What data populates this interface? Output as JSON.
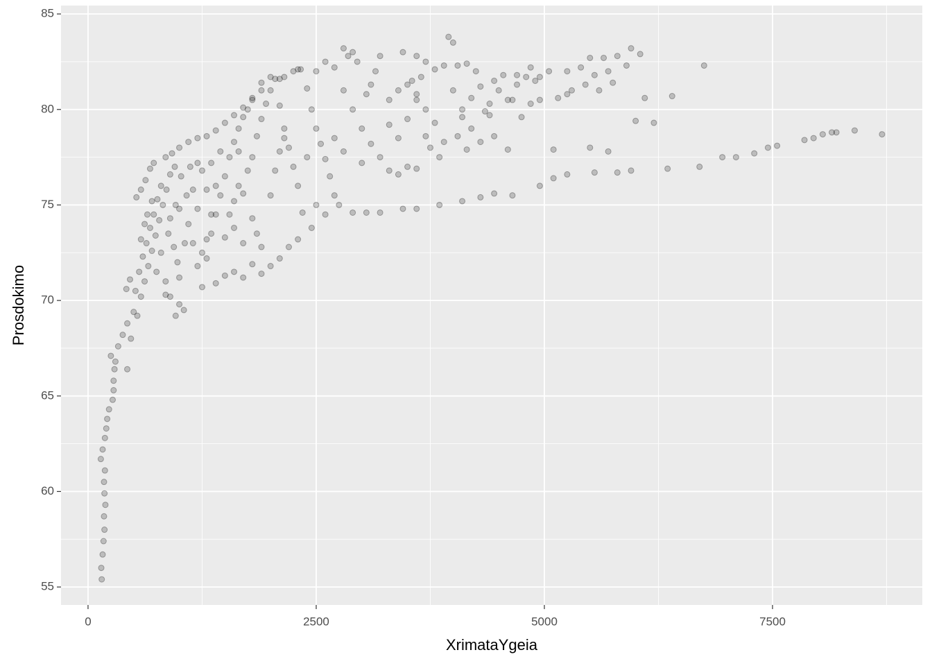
{
  "chart_data": {
    "type": "scatter",
    "x_label": "XrimataYgeia",
    "y_label": "Prosdokimo",
    "xlim": [
      -296,
      9141
    ],
    "ylim": [
      54.06,
      85.44
    ],
    "xticks": [
      0,
      2500,
      5000,
      7500
    ],
    "yticks": [
      55,
      60,
      65,
      70,
      75,
      80,
      85
    ],
    "x_minor_grid": [
      1250,
      3750,
      6250,
      8750
    ],
    "y_minor_grid": [
      57.5,
      62.5,
      67.5,
      72.5,
      77.5,
      82.5
    ],
    "grid": true,
    "color": "#000000",
    "opacity": 0.2,
    "x": [
      150,
      145,
      160,
      170,
      180,
      175,
      190,
      180,
      175,
      185,
      140,
      160,
      185,
      200,
      210,
      230,
      270,
      280,
      280,
      290,
      250,
      300,
      330,
      380,
      430,
      430,
      470,
      500,
      420,
      460,
      520,
      560,
      600,
      640,
      680,
      720,
      760,
      800,
      540,
      580,
      620,
      660,
      700,
      740,
      780,
      820,
      860,
      900,
      950,
      980,
      1000,
      960,
      1050,
      900,
      850,
      940,
      880,
      1000,
      1020,
      1080,
      1100,
      1150,
      1200,
      1250,
      1060,
      1120,
      650,
      700,
      580,
      620,
      750,
      800,
      850,
      900,
      960,
      1000,
      1300,
      1350,
      1400,
      1450,
      1500,
      1550,
      1600,
      1650,
      1700,
      1400,
      1500,
      1600,
      1700,
      1800,
      1900,
      2000,
      2100,
      2200,
      2300,
      1250,
      1300,
      1350,
      1450,
      1500,
      1550,
      1600,
      1650,
      1700,
      1750,
      1800,
      1850,
      1900,
      1950,
      2000,
      2050,
      2100,
      2150,
      2200,
      2250,
      2300,
      2350,
      1800,
      1850,
      1900,
      2000,
      2050,
      2100,
      2150,
      1700,
      1400,
      1350,
      1300,
      1250,
      1200,
      1150,
      1200,
      1800,
      1900,
      2000,
      2150,
      2250,
      2330,
      1750,
      1650,
      1600,
      530,
      580,
      630,
      680,
      720,
      850,
      920,
      1000,
      1100,
      1200,
      1300,
      1400,
      1500,
      1600,
      1700,
      1800,
      1900,
      2100,
      2300,
      2400,
      2450,
      2500,
      2550,
      2600,
      2650,
      2700,
      2750,
      2500,
      2600,
      2450,
      2400,
      2500,
      2600,
      2700,
      2800,
      2850,
      2900,
      2950,
      2800,
      2900,
      3000,
      3100,
      3200,
      3300,
      3400,
      3500,
      3600,
      2900,
      3050,
      3200,
      3450,
      2700,
      2800,
      3000,
      3050,
      3100,
      3150,
      3200,
      3450,
      3600,
      3700,
      3800,
      3900,
      3950,
      4000,
      4050,
      3300,
      3400,
      3500,
      3550,
      3600,
      3650,
      3700,
      3800,
      3750,
      3850,
      3500,
      3400,
      3300,
      3700,
      3900,
      3600,
      4100,
      4200,
      4300,
      4400,
      4500,
      4600,
      4700,
      4800,
      4900,
      4950,
      4150,
      4250,
      4450,
      4550,
      4700,
      4850,
      4000,
      4100,
      4200,
      4300,
      4400,
      4450,
      4600,
      4750,
      4850,
      4950,
      4050,
      4150,
      4350,
      4650,
      5050,
      5250,
      5400,
      5500,
      5650,
      5800,
      5900,
      5700,
      5550,
      5300,
      5450,
      5600,
      5750,
      5250,
      5150,
      3600,
      3850,
      4100,
      4300,
      4450,
      4650,
      4950,
      5100,
      5250,
      5550,
      5800,
      5950,
      6350,
      6700,
      6950,
      7100,
      7300,
      7450,
      7550,
      7850,
      7950,
      8050,
      8150,
      8200,
      8400,
      8700,
      5100,
      5500,
      5700,
      6000,
      6200,
      6400,
      6100,
      6750,
      5950,
      6050
    ],
    "y": [
      55.4,
      56,
      56.7,
      57.4,
      58,
      58.7,
      59.3,
      59.9,
      60.5,
      61.1,
      61.7,
      62.2,
      62.8,
      63.3,
      63.8,
      64.3,
      64.8,
      65.3,
      65.8,
      66.4,
      67.1,
      66.8,
      67.6,
      68.2,
      68.8,
      66.4,
      68,
      69.4,
      70.6,
      71.1,
      70.5,
      71.5,
      72.3,
      73,
      73.8,
      74.5,
      75.3,
      76,
      69.2,
      70.2,
      71,
      71.8,
      72.6,
      73.4,
      74.2,
      75,
      75.8,
      76.6,
      77,
      72,
      69.8,
      69.2,
      69.5,
      70.2,
      71,
      72.8,
      73.5,
      74.8,
      76.5,
      75.5,
      74,
      73,
      71.8,
      70.7,
      73,
      77,
      74.5,
      75.2,
      73.2,
      74,
      71.5,
      72.5,
      70.3,
      74.3,
      75,
      71.2,
      72.2,
      73.5,
      74.5,
      75.5,
      76.5,
      77.5,
      78.3,
      79,
      79.6,
      70.9,
      71.3,
      71.5,
      71.2,
      71.9,
      71.4,
      71.8,
      72.2,
      72.8,
      73.2,
      76.8,
      75.8,
      77.2,
      77.8,
      73.3,
      74.5,
      75.2,
      76,
      75.6,
      76.8,
      77.5,
      78.6,
      79.5,
      80.3,
      81,
      81.6,
      80.2,
      79,
      78,
      77,
      76,
      74.6,
      74.3,
      73.5,
      72.8,
      75.5,
      76.8,
      77.8,
      78.5,
      73,
      76,
      74.5,
      73.2,
      72.5,
      74.8,
      75.8,
      77.2,
      80.5,
      81.4,
      81.7,
      81.7,
      82,
      82.1,
      80,
      77.8,
      73.8,
      75.4,
      75.8,
      76.3,
      76.9,
      77.2,
      77.5,
      77.7,
      78,
      78.3,
      78.5,
      78.6,
      78.9,
      79.3,
      79.7,
      80.1,
      80.6,
      81,
      81.6,
      82.1,
      81.1,
      80,
      79,
      78.2,
      77.4,
      76.5,
      75.5,
      75,
      75,
      74.5,
      73.8,
      77.5,
      82,
      82.5,
      82.2,
      83.2,
      82.8,
      83,
      82.5,
      81,
      80,
      79,
      78.2,
      77.5,
      76.8,
      76.6,
      77,
      76.9,
      74.6,
      74.6,
      74.6,
      74.8,
      78.5,
      77.8,
      77.2,
      80.8,
      81.3,
      82,
      82.8,
      83,
      82.8,
      82.5,
      82.1,
      82.3,
      83.8,
      83.5,
      82.3,
      80.5,
      81,
      81.3,
      81.5,
      80.8,
      81.7,
      80,
      79.3,
      78,
      77.5,
      79.5,
      78.5,
      79.2,
      78.6,
      78.3,
      80.5,
      80,
      80.6,
      81.2,
      80.3,
      81,
      80.5,
      81.3,
      81.7,
      81.5,
      81.7,
      82.4,
      82,
      81.5,
      81.8,
      81.8,
      82.2,
      81,
      79.6,
      79,
      78.3,
      79.7,
      78.6,
      77.9,
      79.6,
      80.3,
      80.5,
      78.6,
      77.9,
      79.9,
      80.5,
      82,
      82,
      82.2,
      82.7,
      82.7,
      82.8,
      82.3,
      82,
      81.8,
      81,
      81.3,
      81,
      81.4,
      80.8,
      80.6,
      74.8,
      75,
      75.2,
      75.4,
      75.6,
      75.5,
      76,
      76.4,
      76.6,
      76.7,
      76.7,
      76.8,
      76.9,
      77,
      77.5,
      77.5,
      77.7,
      78,
      78.1,
      78.4,
      78.5,
      78.7,
      78.8,
      78.8,
      78.9,
      78.7,
      77.9,
      78,
      77.8,
      79.4,
      79.3,
      80.7,
      80.6,
      82.3,
      83.2,
      82.9
    ]
  }
}
